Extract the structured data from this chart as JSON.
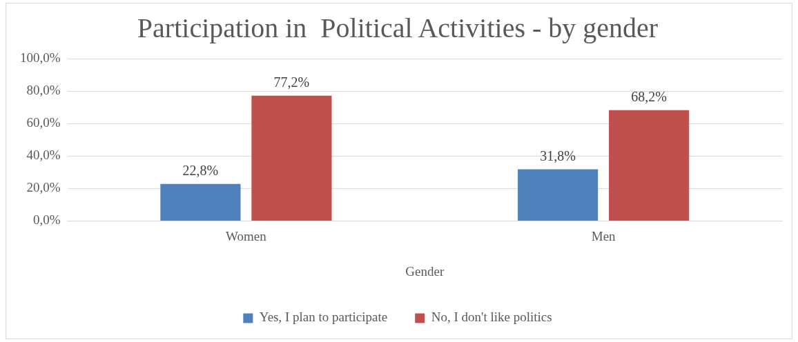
{
  "chart_data": {
    "type": "bar",
    "title": "Participation in  Political Activities - by gender",
    "xlabel": "Gender",
    "categories": [
      "Women",
      "Men"
    ],
    "series": [
      {
        "name": "Yes, I plan to participate",
        "color": "#4f81bd",
        "values": [
          22.8,
          31.8
        ],
        "value_labels": [
          "22,8%",
          "31,8%"
        ]
      },
      {
        "name": "No, I don't like politics",
        "color": "#c0504d",
        "values": [
          77.2,
          68.2
        ],
        "value_labels": [
          "77,2%",
          "68,2%"
        ]
      }
    ],
    "ylim": [
      0,
      100
    ],
    "yticks": [
      {
        "value": 0,
        "label": "0,0%"
      },
      {
        "value": 20,
        "label": "20,0%"
      },
      {
        "value": 40,
        "label": "40,0%"
      },
      {
        "value": 60,
        "label": "60,0%"
      },
      {
        "value": 80,
        "label": "80,0%"
      },
      {
        "value": 100,
        "label": "100,0%"
      }
    ],
    "grid": "y",
    "legend": "bottom"
  }
}
